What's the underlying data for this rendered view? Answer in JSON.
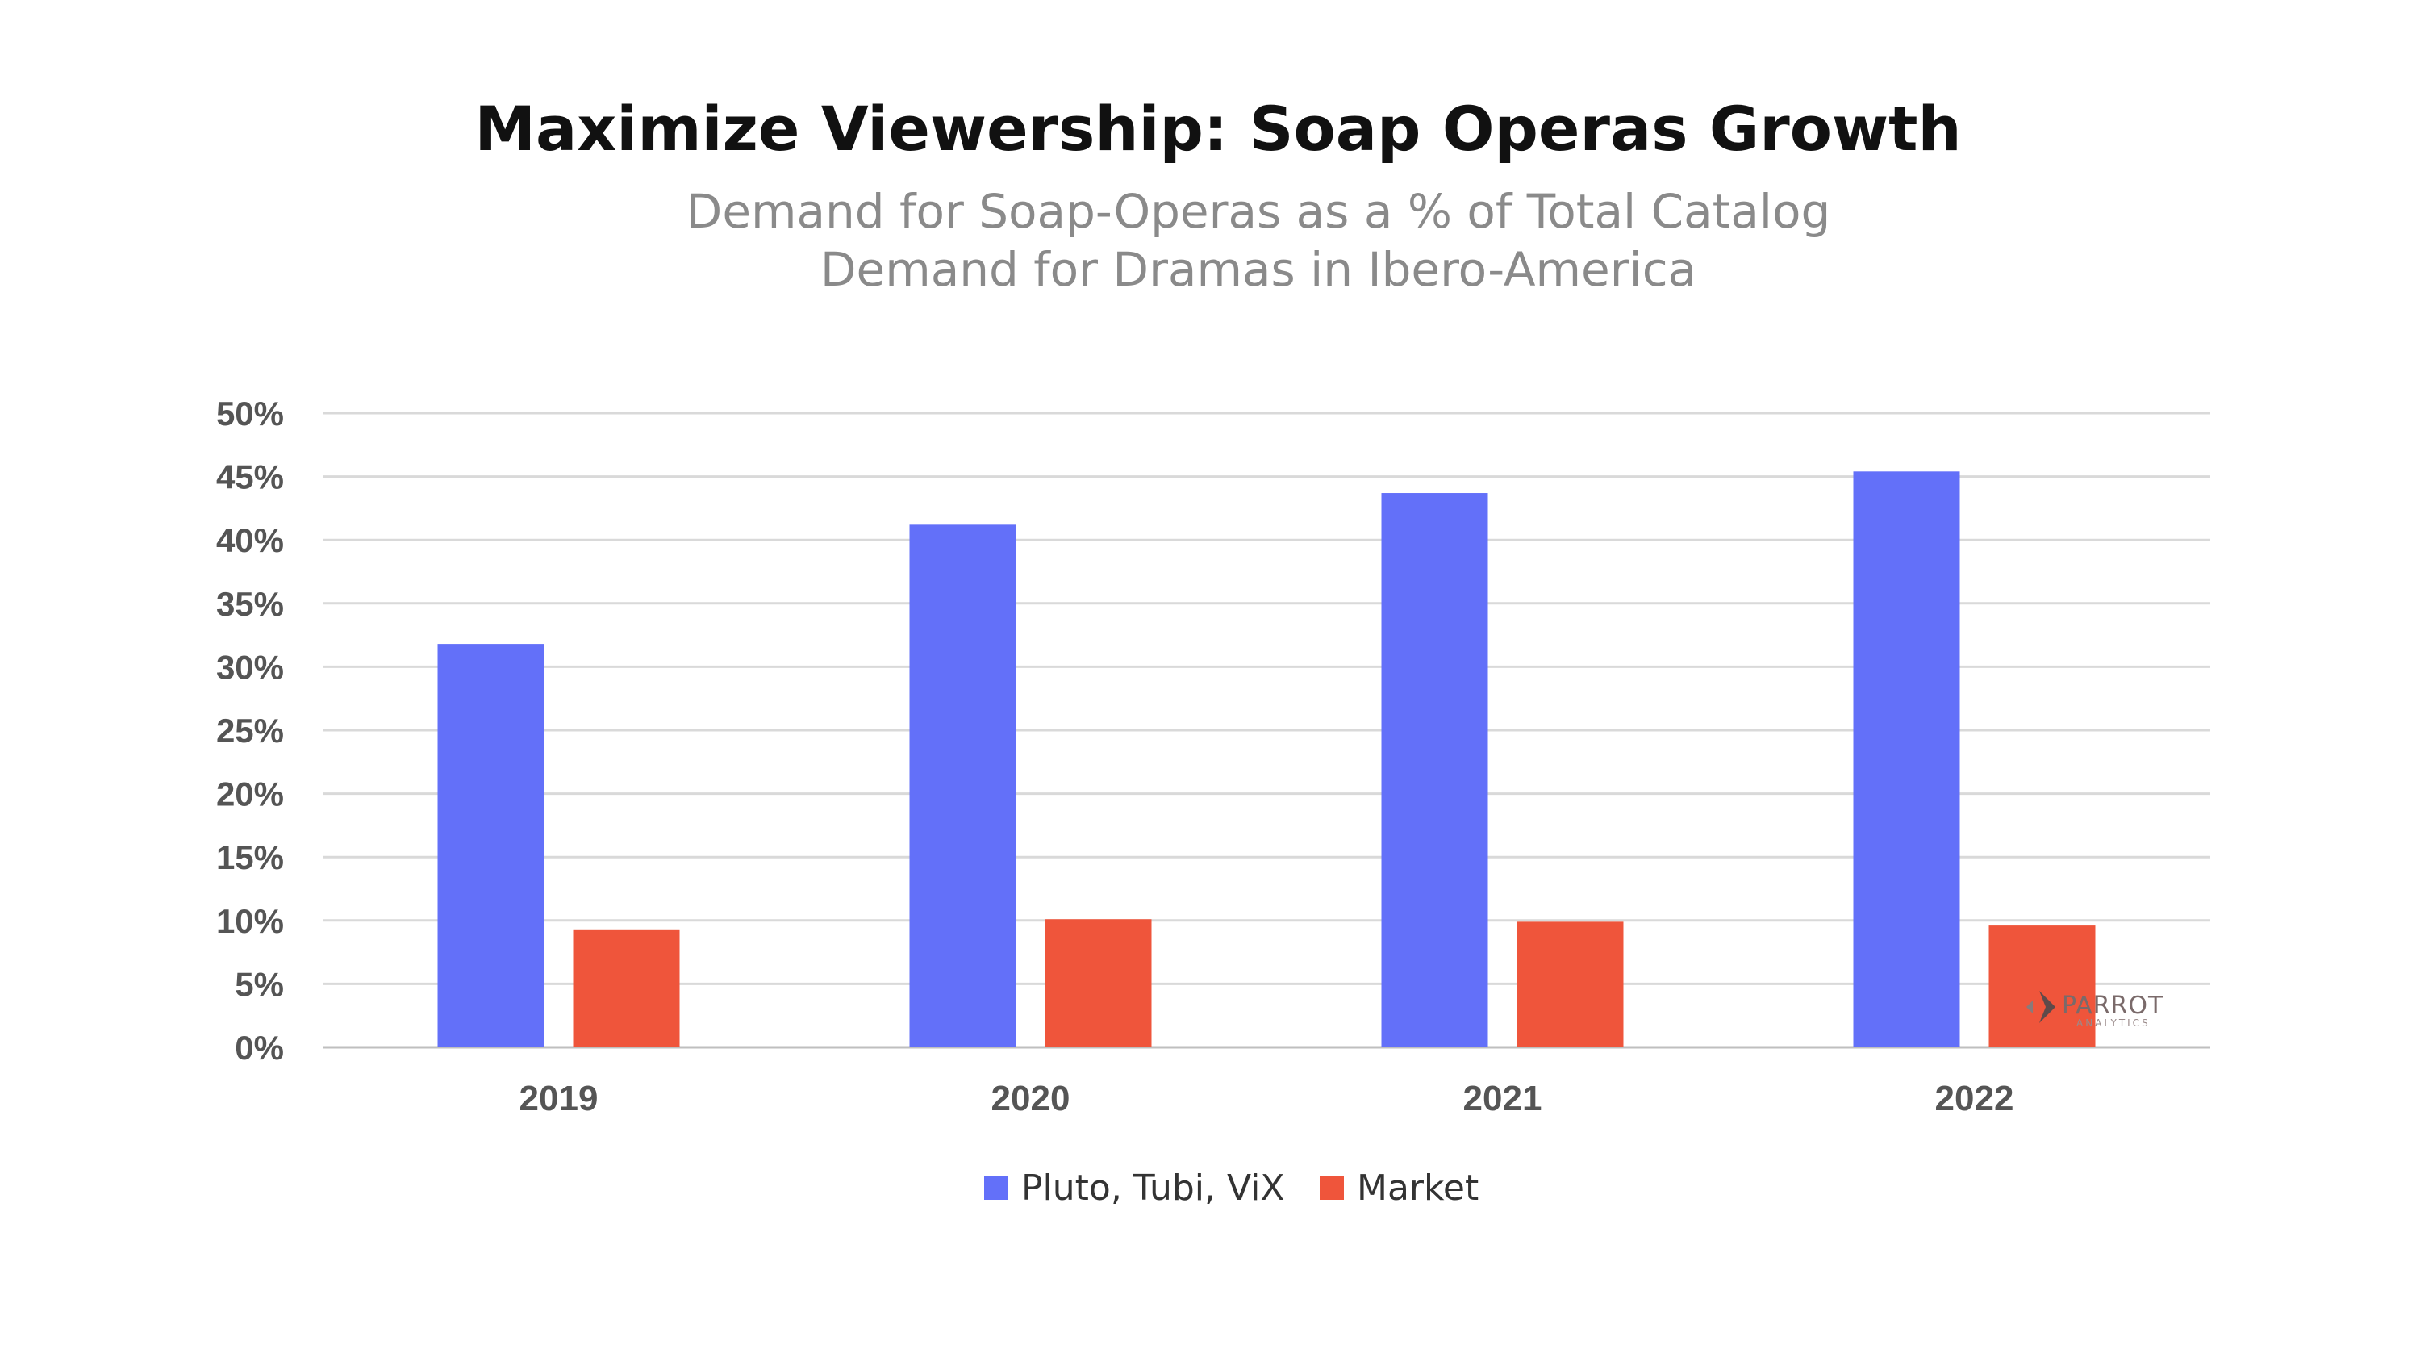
{
  "chart_data": {
    "type": "bar",
    "title": "Maximize Viewership: Soap Operas Growth",
    "subtitle_line1": "Demand for Soap-Operas as a % of Total Catalog",
    "subtitle_line2": "Demand for Dramas in Ibero-America",
    "categories": [
      "2019",
      "2020",
      "2021",
      "2022"
    ],
    "series": [
      {
        "name": "Pluto, Tubi, ViX",
        "color": "#6370F9",
        "values": [
          31.8,
          41.2,
          43.7,
          45.4
        ]
      },
      {
        "name": "Market",
        "color": "#EF553B",
        "values": [
          9.3,
          10.1,
          9.9,
          9.6
        ]
      }
    ],
    "ylim": [
      0,
      50
    ],
    "yticks": [
      "0%",
      "5%",
      "10%",
      "15%",
      "20%",
      "25%",
      "30%",
      "35%",
      "40%",
      "45%",
      "50%"
    ],
    "xlabel": "",
    "ylabel": "",
    "grid": true,
    "legend_position": "bottom-center"
  },
  "watermark": {
    "text": "PARROT",
    "subtext": "ANALYTICS",
    "color": "#7a6a6a"
  }
}
